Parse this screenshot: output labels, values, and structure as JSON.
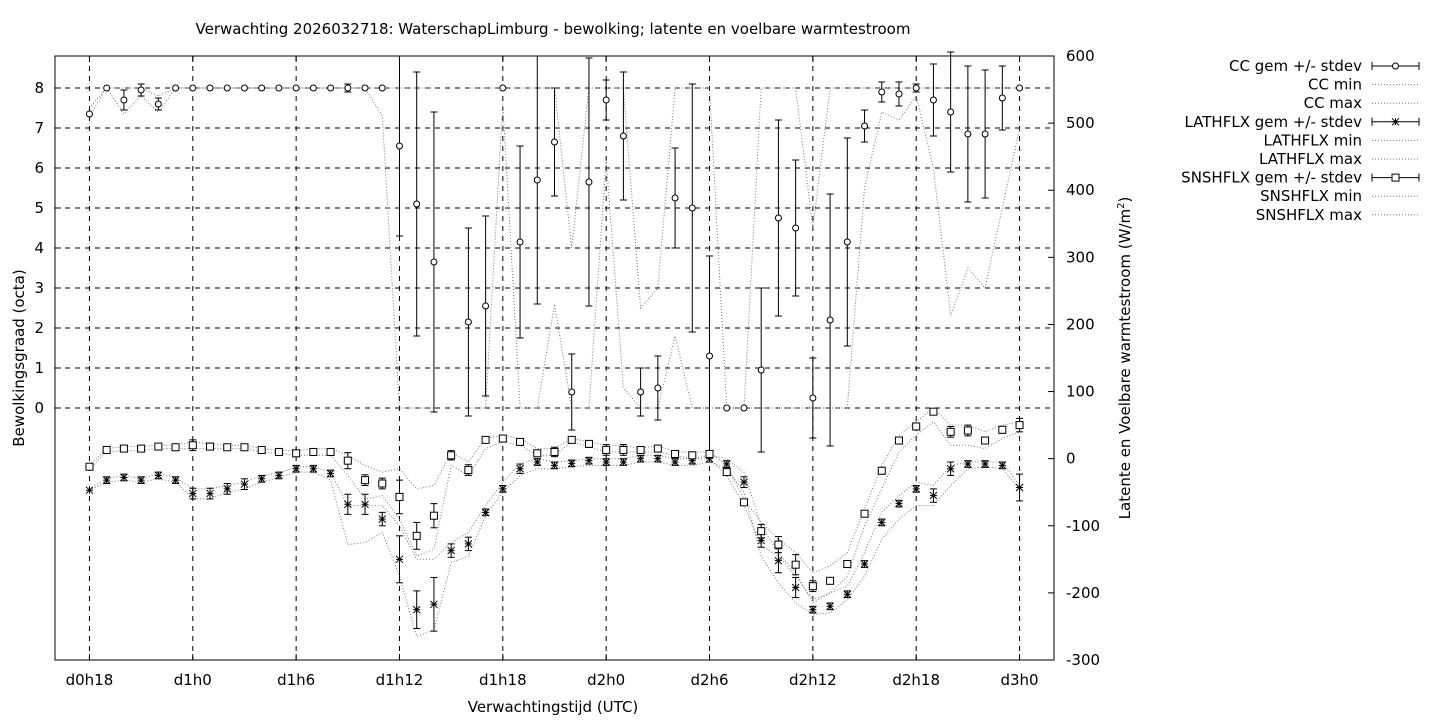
{
  "chart_data": {
    "type": "scatter",
    "title": "Verwachting 2026032718: WaterschapLimburg - bewolking; latente en voelbare warmtestroom",
    "xlabel": "Verwachtingstijd (UTC)",
    "ylabel": "Bewolkingsgraad (octa)",
    "y2label_prefix": "Latente en Voelbare warmtestroom (W/m",
    "y2label_sup": "2",
    "y2label_suffix": ")",
    "x_ticks": [
      {
        "x": 0,
        "label": "d0h18"
      },
      {
        "x": 6,
        "label": "d1h0"
      },
      {
        "x": 12,
        "label": "d1h6"
      },
      {
        "x": 18,
        "label": "d1h12"
      },
      {
        "x": 24,
        "label": "d1h18"
      },
      {
        "x": 30,
        "label": "d2h0"
      },
      {
        "x": 36,
        "label": "d2h6"
      },
      {
        "x": 42,
        "label": "d2h12"
      },
      {
        "x": 48,
        "label": "d2h18"
      },
      {
        "x": 54,
        "label": "d3h0"
      }
    ],
    "xlim": [
      -2,
      56
    ],
    "ylim": [
      -6.3,
      8.8
    ],
    "y2lim": [
      -300,
      600
    ],
    "y_ticks": [
      0,
      1,
      2,
      3,
      4,
      5,
      6,
      7,
      8
    ],
    "y2_ticks": [
      -300,
      -200,
      -100,
      0,
      100,
      200,
      300,
      400,
      500,
      600
    ],
    "grid": true,
    "legend": {
      "position": "outside-right",
      "entries": [
        {
          "key": "cc_mean",
          "label": "CC gem +/- stdev"
        },
        {
          "key": "cc_min",
          "label": "CC min"
        },
        {
          "key": "cc_max",
          "label": "CC max"
        },
        {
          "key": "lat_mean",
          "label": "LATHFLX gem +/- stdev"
        },
        {
          "key": "lat_min",
          "label": "LATHFLX min"
        },
        {
          "key": "lat_max",
          "label": "LATHFLX max"
        },
        {
          "key": "sh_mean",
          "label": "SNSHFLX gem +/- stdev"
        },
        {
          "key": "sh_min",
          "label": "SNSHFLX min"
        },
        {
          "key": "sh_max",
          "label": "SNSHFLX max"
        }
      ]
    },
    "series": {
      "cc": {
        "axis": "left",
        "x": [
          0,
          1,
          2,
          3,
          4,
          5,
          6,
          7,
          8,
          9,
          10,
          11,
          12,
          13,
          14,
          15,
          16,
          17,
          18,
          19,
          20,
          21,
          22,
          23,
          24,
          25,
          26,
          27,
          28,
          29,
          30,
          31,
          32,
          33,
          34,
          35,
          36,
          37,
          38,
          39,
          40,
          41,
          42,
          43,
          44,
          45,
          46,
          47,
          48,
          49,
          50,
          51,
          52,
          53,
          54
        ],
        "mean": [
          7.35,
          8.0,
          7.7,
          7.95,
          7.6,
          8.0,
          8.0,
          8.0,
          8.0,
          8.0,
          8.0,
          8.0,
          8.0,
          8.0,
          8.0,
          8.0,
          8.0,
          8.0,
          6.55,
          5.1,
          3.65,
          null,
          2.15,
          2.55,
          8.0,
          4.15,
          5.7,
          6.65,
          0.4,
          5.65,
          7.7,
          6.8,
          0.4,
          0.5,
          5.25,
          5.0,
          1.3,
          0.0,
          0.0,
          0.95,
          4.75,
          4.5,
          0.25,
          2.2,
          4.15,
          7.05,
          7.9,
          7.85,
          8.0,
          7.7,
          7.4,
          6.85,
          6.85,
          7.75,
          8.0
        ],
        "sd": [
          0,
          0,
          0.25,
          0.15,
          0.15,
          0,
          0,
          0,
          0,
          0,
          0,
          0,
          0,
          0,
          0,
          0.1,
          0,
          0,
          2.25,
          3.3,
          3.75,
          null,
          2.35,
          2.25,
          0,
          2.4,
          3.1,
          1.35,
          0.95,
          3.1,
          0.5,
          1.6,
          0.6,
          0.8,
          1.25,
          3.1,
          2.5,
          0,
          0,
          2.05,
          2.45,
          1.7,
          1.0,
          3.15,
          2.6,
          0.4,
          0.25,
          0.3,
          0.1,
          0.9,
          1.5,
          1.7,
          1.6,
          0.8,
          0
        ],
        "min": [
          7.3,
          8.0,
          7.35,
          7.8,
          7.4,
          8.0,
          8.0,
          8.0,
          8.0,
          8.0,
          8.0,
          8.0,
          8.0,
          8.0,
          8.0,
          8.0,
          8.0,
          7.3,
          0.0,
          0.0,
          0.0,
          null,
          0.0,
          0.0,
          7.6,
          0.0,
          0.0,
          2.6,
          0.0,
          0.0,
          6.2,
          0.5,
          0.0,
          0.0,
          1.8,
          0.0,
          0.0,
          0.0,
          0.0,
          0.0,
          0.0,
          0.0,
          0.0,
          0.0,
          0.0,
          5.5,
          7.4,
          7.2,
          7.8,
          6.0,
          2.3,
          3.5,
          3.0,
          5.0,
          7.0
        ],
        "max": [
          7.5,
          8.0,
          8.0,
          8.0,
          7.8,
          8.0,
          8.0,
          8.0,
          8.0,
          8.0,
          8.0,
          8.0,
          8.0,
          8.0,
          8.0,
          8.0,
          8.0,
          8.0,
          8.0,
          8.0,
          8.0,
          null,
          8.0,
          8.0,
          8.0,
          8.0,
          8.0,
          8.0,
          4.0,
          8.0,
          8.0,
          8.0,
          2.5,
          3.0,
          8.0,
          8.0,
          8.0,
          0.0,
          0.0,
          8.0,
          8.0,
          8.0,
          4.5,
          8.0,
          8.0,
          8.0,
          8.0,
          8.0,
          8.0,
          8.0,
          8.0,
          8.0,
          8.0,
          8.0,
          8.0
        ]
      },
      "lathflx": {
        "axis": "right",
        "x": [
          0,
          1,
          2,
          3,
          4,
          5,
          6,
          7,
          8,
          9,
          10,
          11,
          12,
          13,
          14,
          15,
          16,
          17,
          18,
          19,
          20,
          21,
          22,
          23,
          24,
          25,
          26,
          27,
          28,
          29,
          30,
          31,
          32,
          33,
          34,
          35,
          36,
          37,
          38,
          39,
          40,
          41,
          42,
          43,
          44,
          45,
          46,
          47,
          48,
          49,
          50,
          51,
          52,
          53,
          54
        ],
        "mean": [
          -47,
          -32,
          -28,
          -32,
          -25,
          -32,
          -52,
          -52,
          -45,
          -38,
          -30,
          -25,
          -15,
          -15,
          -22,
          -68,
          -68,
          -90,
          -150,
          -225,
          -217,
          -137,
          -127,
          -80,
          -45,
          -15,
          -5,
          -10,
          -7,
          -3,
          -5,
          -5,
          0,
          0,
          -5,
          -3,
          0,
          -8,
          -35,
          -122,
          -152,
          -192,
          -225,
          -220,
          -202,
          -157,
          -95,
          -67,
          -45,
          -55,
          -15,
          -8,
          -8,
          -10,
          -43
        ],
        "sd": [
          0,
          5,
          5,
          5,
          5,
          5,
          8,
          8,
          8,
          8,
          5,
          5,
          5,
          5,
          5,
          15,
          15,
          10,
          35,
          28,
          40,
          10,
          10,
          5,
          5,
          7,
          5,
          5,
          5,
          5,
          5,
          5,
          5,
          5,
          5,
          5,
          5,
          5,
          8,
          10,
          18,
          15,
          5,
          5,
          5,
          5,
          5,
          5,
          5,
          10,
          10,
          5,
          5,
          5,
          20
        ],
        "min": [
          -47,
          -35,
          -32,
          -35,
          -30,
          -35,
          -60,
          -60,
          -50,
          -45,
          -35,
          -28,
          -20,
          -20,
          -32,
          -128,
          -125,
          -110,
          -175,
          -265,
          -255,
          -155,
          -145,
          -85,
          -50,
          -25,
          -15,
          -15,
          -12,
          -10,
          -10,
          -10,
          -5,
          -5,
          -10,
          -10,
          -5,
          -15,
          -50,
          -145,
          -185,
          -215,
          -232,
          -230,
          -210,
          -175,
          -120,
          -90,
          -70,
          -70,
          -40,
          -15,
          -12,
          -15,
          -45
        ],
        "max": [
          -45,
          -30,
          -25,
          -30,
          -22,
          -28,
          -45,
          -45,
          -40,
          -35,
          -25,
          -22,
          -12,
          -12,
          -20,
          -70,
          -70,
          -70,
          -100,
          -150,
          -150,
          -125,
          -110,
          -70,
          -35,
          -8,
          0,
          -5,
          -3,
          0,
          0,
          0,
          5,
          5,
          0,
          0,
          5,
          0,
          -20,
          -100,
          -140,
          -170,
          -215,
          -200,
          -190,
          -140,
          -80,
          -55,
          -35,
          -40,
          -10,
          -5,
          -5,
          -5,
          -40
        ]
      },
      "snshflx": {
        "axis": "right",
        "x": [
          0,
          1,
          2,
          3,
          4,
          5,
          6,
          7,
          8,
          9,
          10,
          11,
          12,
          13,
          14,
          15,
          16,
          17,
          18,
          19,
          20,
          21,
          22,
          23,
          24,
          25,
          26,
          27,
          28,
          29,
          30,
          31,
          32,
          33,
          34,
          35,
          36,
          37,
          38,
          39,
          40,
          41,
          42,
          43,
          44,
          45,
          46,
          47,
          48,
          49,
          50,
          51,
          52,
          53,
          54
        ],
        "mean": [
          -12,
          13,
          15,
          15,
          18,
          17,
          20,
          18,
          17,
          17,
          13,
          10,
          8,
          10,
          10,
          -3,
          -32,
          -37,
          -57,
          -115,
          -85,
          5,
          -17,
          28,
          30,
          25,
          8,
          10,
          28,
          22,
          13,
          13,
          13,
          15,
          7,
          5,
          7,
          -20,
          -65,
          -108,
          -128,
          -158,
          -190,
          -182,
          -157,
          -82,
          -18,
          27,
          48,
          70,
          40,
          42,
          27,
          43,
          50
        ],
        "sd": [
          0,
          3,
          3,
          3,
          3,
          3,
          8,
          5,
          3,
          3,
          3,
          3,
          5,
          5,
          5,
          12,
          8,
          8,
          25,
          20,
          18,
          7,
          8,
          3,
          3,
          3,
          5,
          7,
          3,
          5,
          8,
          8,
          3,
          3,
          5,
          5,
          5,
          5,
          3,
          10,
          12,
          15,
          8,
          3,
          5,
          3,
          5,
          3,
          3,
          3,
          8,
          8,
          3,
          5,
          10
        ],
        "min": [
          -15,
          10,
          12,
          12,
          15,
          15,
          15,
          15,
          15,
          15,
          10,
          8,
          5,
          5,
          5,
          -25,
          -60,
          -55,
          -90,
          -145,
          -135,
          -10,
          -25,
          15,
          25,
          20,
          5,
          5,
          25,
          18,
          10,
          10,
          10,
          10,
          5,
          0,
          0,
          -25,
          -70,
          -130,
          -145,
          -175,
          -210,
          -200,
          -175,
          -100,
          -45,
          10,
          35,
          55,
          20,
          20,
          15,
          30,
          40
        ],
        "max": [
          -10,
          15,
          18,
          18,
          20,
          20,
          25,
          22,
          20,
          20,
          15,
          12,
          12,
          15,
          15,
          5,
          -10,
          -20,
          -15,
          -45,
          -40,
          10,
          -5,
          30,
          35,
          30,
          15,
          15,
          30,
          25,
          20,
          20,
          15,
          20,
          10,
          10,
          10,
          -10,
          -60,
          -95,
          -120,
          -140,
          -170,
          -160,
          -140,
          -75,
          -10,
          35,
          55,
          75,
          50,
          50,
          40,
          50,
          55
        ]
      }
    }
  }
}
